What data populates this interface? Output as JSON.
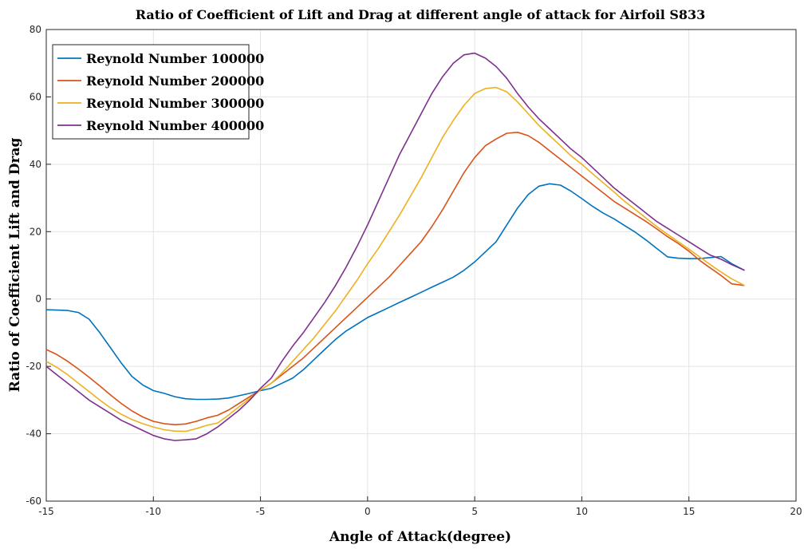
{
  "chart_data": {
    "type": "line",
    "title": "Ratio of Coefficient of Lift and Drag at different angle of attack for Airfoil S833",
    "xlabel": "Angle of Attack(degree)",
    "ylabel": "Ratio of Coefficient Lift and  Drag",
    "xlim": [
      -15,
      20
    ],
    "ylim": [
      -60,
      80
    ],
    "xticks": [
      -15,
      -10,
      -5,
      0,
      5,
      10,
      15,
      20
    ],
    "yticks": [
      -60,
      -40,
      -20,
      0,
      20,
      40,
      60,
      80
    ],
    "xtick_labels": [
      "-15",
      "-10",
      "-5",
      "0",
      "5",
      "10",
      "15",
      "20"
    ],
    "ytick_labels": [
      "-60",
      "-40",
      "-20",
      "0",
      "20",
      "40",
      "60",
      "80"
    ],
    "grid": true,
    "legend_position": "top-left",
    "series": [
      {
        "name": "Reynold Number 100000",
        "color": "#0072BD",
        "points": [
          [
            -15,
            -3.2
          ],
          [
            -14.5,
            -3.3
          ],
          [
            -14,
            -3.4
          ],
          [
            -13.5,
            -4
          ],
          [
            -13,
            -6
          ],
          [
            -12.5,
            -10
          ],
          [
            -12,
            -14.5
          ],
          [
            -11.5,
            -19
          ],
          [
            -11,
            -23
          ],
          [
            -10.5,
            -25.5
          ],
          [
            -10,
            -27.2
          ],
          [
            -9.5,
            -28
          ],
          [
            -9,
            -29
          ],
          [
            -8.5,
            -29.6
          ],
          [
            -8,
            -29.8
          ],
          [
            -7.5,
            -29.8
          ],
          [
            -7,
            -29.7
          ],
          [
            -6.5,
            -29.4
          ],
          [
            -6,
            -28.7
          ],
          [
            -5.5,
            -28
          ],
          [
            -5,
            -27.2
          ],
          [
            -4.5,
            -26.5
          ],
          [
            -4,
            -25
          ],
          [
            -3.5,
            -23.5
          ],
          [
            -3,
            -21
          ],
          [
            -2.5,
            -18
          ],
          [
            -2,
            -15
          ],
          [
            -1.5,
            -12
          ],
          [
            -1,
            -9.5
          ],
          [
            -0.5,
            -7.5
          ],
          [
            0,
            -5.5
          ],
          [
            0.5,
            -4
          ],
          [
            1,
            -2.5
          ],
          [
            1.5,
            -1
          ],
          [
            2,
            0.5
          ],
          [
            2.5,
            2
          ],
          [
            3,
            3.5
          ],
          [
            3.5,
            5
          ],
          [
            4,
            6.5
          ],
          [
            4.5,
            8.5
          ],
          [
            5,
            11
          ],
          [
            5.5,
            14
          ],
          [
            6,
            17
          ],
          [
            6.5,
            22
          ],
          [
            7,
            27
          ],
          [
            7.5,
            31
          ],
          [
            8,
            33.5
          ],
          [
            8.5,
            34.2
          ],
          [
            9,
            33.8
          ],
          [
            9.5,
            32
          ],
          [
            10,
            29.8
          ],
          [
            10.5,
            27.5
          ],
          [
            11,
            25.5
          ],
          [
            11.5,
            23.8
          ],
          [
            12,
            21.8
          ],
          [
            12.5,
            19.8
          ],
          [
            13,
            17.5
          ],
          [
            13.5,
            15
          ],
          [
            14,
            12.5
          ],
          [
            14.5,
            12.1
          ],
          [
            15,
            12
          ],
          [
            15.5,
            12
          ],
          [
            16,
            12.3
          ],
          [
            16.5,
            12.6
          ],
          [
            17,
            10.5
          ],
          [
            17.6,
            8.5
          ]
        ]
      },
      {
        "name": "Reynold Number 200000",
        "color": "#D95319",
        "points": [
          [
            -15,
            -15
          ],
          [
            -14.5,
            -16.5
          ],
          [
            -14,
            -18.5
          ],
          [
            -13.5,
            -20.8
          ],
          [
            -13,
            -23.2
          ],
          [
            -12.5,
            -25.8
          ],
          [
            -12,
            -28.5
          ],
          [
            -11.5,
            -31
          ],
          [
            -11,
            -33.2
          ],
          [
            -10.5,
            -35
          ],
          [
            -10,
            -36.3
          ],
          [
            -9.5,
            -37
          ],
          [
            -9,
            -37.3
          ],
          [
            -8.5,
            -37.1
          ],
          [
            -8,
            -36.3
          ],
          [
            -7.5,
            -35.3
          ],
          [
            -7,
            -34.5
          ],
          [
            -6.5,
            -33
          ],
          [
            -6,
            -31
          ],
          [
            -5.5,
            -29
          ],
          [
            -5,
            -27
          ],
          [
            -4.5,
            -25
          ],
          [
            -4,
            -22.5
          ],
          [
            -3.5,
            -20
          ],
          [
            -3,
            -17.5
          ],
          [
            -2.5,
            -14.5
          ],
          [
            -2,
            -11.5
          ],
          [
            -1.5,
            -8.5
          ],
          [
            -1,
            -5.5
          ],
          [
            -0.5,
            -2.5
          ],
          [
            0,
            0.5
          ],
          [
            0.5,
            3.5
          ],
          [
            1,
            6.5
          ],
          [
            1.5,
            10
          ],
          [
            2,
            13.5
          ],
          [
            2.5,
            17
          ],
          [
            3,
            21.5
          ],
          [
            3.5,
            26.5
          ],
          [
            4,
            32
          ],
          [
            4.5,
            37.5
          ],
          [
            5,
            42
          ],
          [
            5.5,
            45.5
          ],
          [
            6,
            47.5
          ],
          [
            6.5,
            49.2
          ],
          [
            7,
            49.5
          ],
          [
            7.5,
            48.5
          ],
          [
            8,
            46.5
          ],
          [
            8.5,
            44
          ],
          [
            9,
            41.5
          ],
          [
            9.5,
            39
          ],
          [
            10,
            36.5
          ],
          [
            10.5,
            34
          ],
          [
            11,
            31.5
          ],
          [
            11.5,
            29
          ],
          [
            12,
            27
          ],
          [
            12.5,
            25
          ],
          [
            13,
            23
          ],
          [
            13.5,
            20.8
          ],
          [
            14,
            18.5
          ],
          [
            14.5,
            16.5
          ],
          [
            15,
            14.2
          ],
          [
            15.5,
            11.5
          ],
          [
            16,
            9.2
          ],
          [
            16.5,
            7
          ],
          [
            17,
            4.5
          ],
          [
            17.6,
            4
          ]
        ]
      },
      {
        "name": "Reynold Number 300000",
        "color": "#EDB120",
        "points": [
          [
            -15,
            -18.5
          ],
          [
            -14.5,
            -20.3
          ],
          [
            -14,
            -22.5
          ],
          [
            -13.5,
            -25
          ],
          [
            -13,
            -27.5
          ],
          [
            -12.5,
            -30
          ],
          [
            -12,
            -32.3
          ],
          [
            -11.5,
            -34.2
          ],
          [
            -11,
            -35.8
          ],
          [
            -10.5,
            -37
          ],
          [
            -10,
            -38
          ],
          [
            -9.5,
            -38.8
          ],
          [
            -9,
            -39.2
          ],
          [
            -8.5,
            -39.3
          ],
          [
            -8,
            -38.5
          ],
          [
            -7.5,
            -37.5
          ],
          [
            -7,
            -36.8
          ],
          [
            -6.5,
            -34.5
          ],
          [
            -6,
            -32
          ],
          [
            -5.5,
            -29.5
          ],
          [
            -5,
            -27
          ],
          [
            -4.5,
            -25
          ],
          [
            -4,
            -22
          ],
          [
            -3.5,
            -18.5
          ],
          [
            -3,
            -15
          ],
          [
            -2.5,
            -11.5
          ],
          [
            -2,
            -7.5
          ],
          [
            -1.5,
            -3.5
          ],
          [
            -1,
            1
          ],
          [
            -0.5,
            5.5
          ],
          [
            0,
            10.5
          ],
          [
            0.5,
            15
          ],
          [
            1,
            20
          ],
          [
            1.5,
            25
          ],
          [
            2,
            30.5
          ],
          [
            2.5,
            36
          ],
          [
            3,
            42
          ],
          [
            3.5,
            48
          ],
          [
            4,
            53
          ],
          [
            4.5,
            57.5
          ],
          [
            5,
            61
          ],
          [
            5.5,
            62.5
          ],
          [
            6,
            62.8
          ],
          [
            6.5,
            61.5
          ],
          [
            7,
            58.5
          ],
          [
            7.5,
            55
          ],
          [
            8,
            51.5
          ],
          [
            8.5,
            48.5
          ],
          [
            9,
            45.5
          ],
          [
            9.5,
            42.5
          ],
          [
            10,
            40
          ],
          [
            10.5,
            37.2
          ],
          [
            11,
            34.5
          ],
          [
            11.5,
            31.8
          ],
          [
            12,
            29
          ],
          [
            12.5,
            26.5
          ],
          [
            13,
            24
          ],
          [
            13.5,
            21.5
          ],
          [
            14,
            19.2
          ],
          [
            14.5,
            17
          ],
          [
            15,
            14.8
          ],
          [
            15.5,
            12.5
          ],
          [
            16,
            10.2
          ],
          [
            16.5,
            8
          ],
          [
            17,
            6
          ],
          [
            17.6,
            4
          ]
        ]
      },
      {
        "name": "Reynold Number 400000",
        "color": "#7E2F8E",
        "points": [
          [
            -15,
            -20
          ],
          [
            -14.5,
            -22.5
          ],
          [
            -14,
            -25
          ],
          [
            -13.5,
            -27.5
          ],
          [
            -13,
            -30
          ],
          [
            -12.5,
            -32
          ],
          [
            -12,
            -34
          ],
          [
            -11.5,
            -36
          ],
          [
            -11,
            -37.5
          ],
          [
            -10.5,
            -39
          ],
          [
            -10,
            -40.5
          ],
          [
            -9.5,
            -41.5
          ],
          [
            -9,
            -42
          ],
          [
            -8.5,
            -41.8
          ],
          [
            -8,
            -41.5
          ],
          [
            -7.5,
            -40
          ],
          [
            -7,
            -38
          ],
          [
            -6.5,
            -35.5
          ],
          [
            -6,
            -33
          ],
          [
            -5.5,
            -30
          ],
          [
            -5,
            -26.5
          ],
          [
            -4.5,
            -23.5
          ],
          [
            -4,
            -18.5
          ],
          [
            -3.5,
            -14
          ],
          [
            -3,
            -10
          ],
          [
            -2.5,
            -5.5
          ],
          [
            -2,
            -1
          ],
          [
            -1.5,
            4
          ],
          [
            -1,
            9.5
          ],
          [
            -0.5,
            15.5
          ],
          [
            0,
            22
          ],
          [
            0.5,
            29
          ],
          [
            1,
            36
          ],
          [
            1.5,
            43
          ],
          [
            2,
            49
          ],
          [
            2.5,
            55
          ],
          [
            3,
            61
          ],
          [
            3.5,
            66
          ],
          [
            4,
            70
          ],
          [
            4.5,
            72.5
          ],
          [
            5,
            73
          ],
          [
            5.5,
            71.5
          ],
          [
            6,
            69
          ],
          [
            6.5,
            65.5
          ],
          [
            7,
            61
          ],
          [
            7.5,
            57
          ],
          [
            8,
            53.5
          ],
          [
            8.5,
            50.5
          ],
          [
            9,
            47.5
          ],
          [
            9.5,
            44.5
          ],
          [
            10,
            42
          ],
          [
            10.5,
            39
          ],
          [
            11,
            36
          ],
          [
            11.5,
            33
          ],
          [
            12,
            30.5
          ],
          [
            12.5,
            28
          ],
          [
            13,
            25.5
          ],
          [
            13.5,
            23
          ],
          [
            14,
            21
          ],
          [
            14.5,
            19
          ],
          [
            15,
            17
          ],
          [
            15.5,
            15
          ],
          [
            16,
            13
          ],
          [
            16.5,
            11.8
          ],
          [
            17,
            10.2
          ],
          [
            17.6,
            8.5
          ]
        ]
      }
    ]
  }
}
